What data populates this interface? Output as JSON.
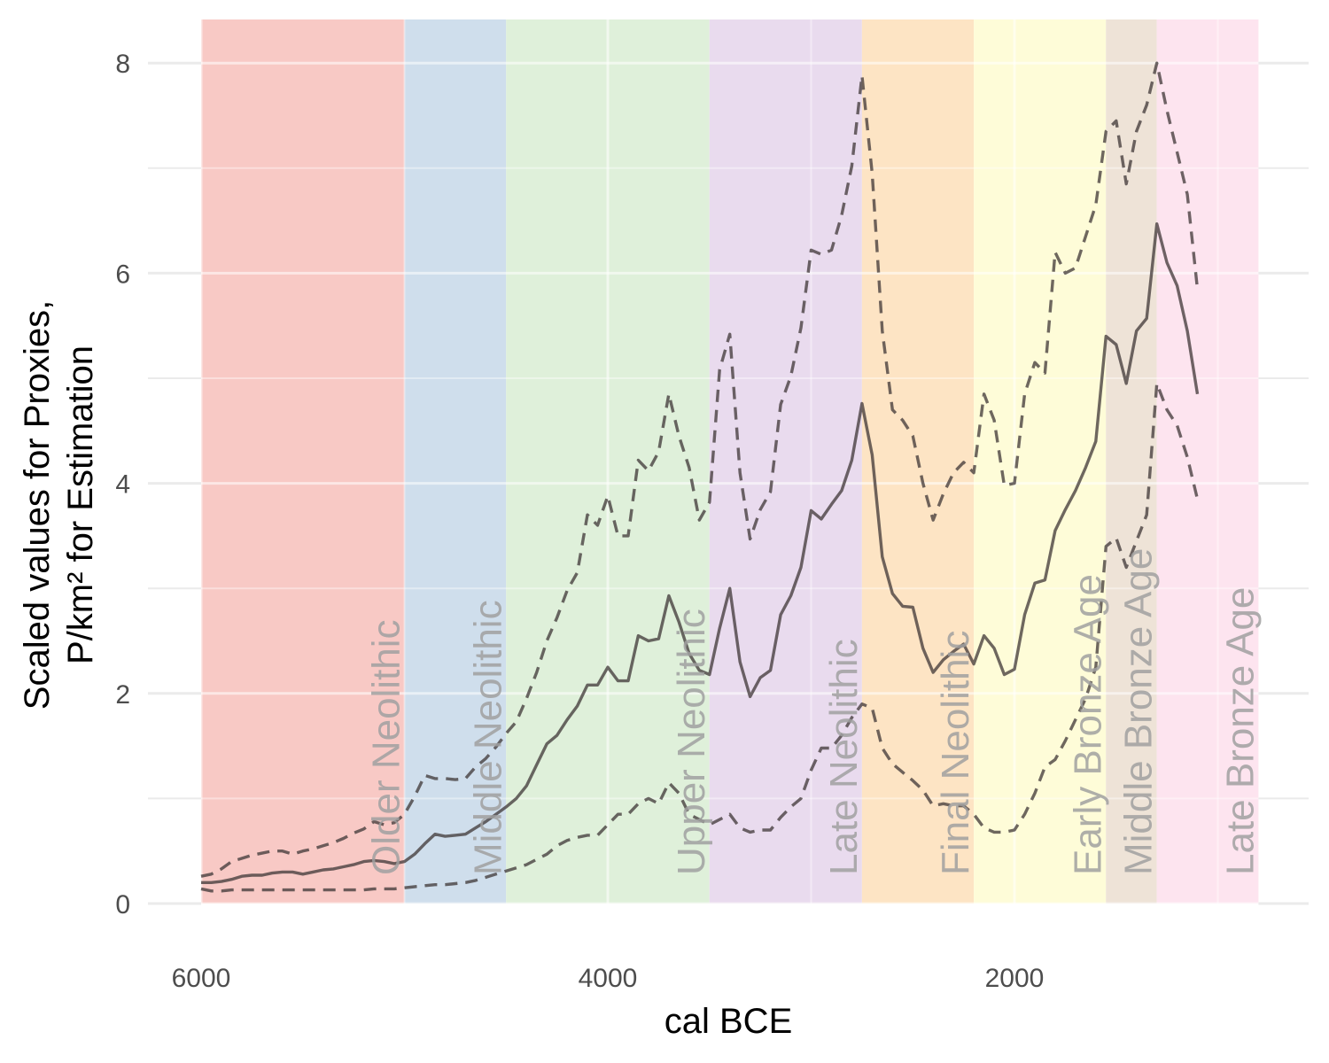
{
  "chart_data": {
    "type": "line",
    "xlabel": "cal BCE",
    "ylabel": [
      "Scaled values for Proxies,",
      "P/km² for Estimation"
    ],
    "x_reversed": true,
    "xlim": [
      6000,
      500
    ],
    "ylim": [
      0,
      8
    ],
    "x_ticks": [
      6000,
      4000,
      2000
    ],
    "x_tick_labels": [
      "6000",
      "4000",
      "2000"
    ],
    "x_minor_ticks": [
      5000,
      3000,
      1000
    ],
    "y_ticks": [
      0,
      2,
      4,
      6,
      8
    ],
    "y_tick_labels": [
      "0",
      "2",
      "4",
      "6",
      "8"
    ],
    "y_minor_ticks": [
      1,
      3,
      5,
      7
    ],
    "grid": true,
    "periods": [
      {
        "label": "Older Neolithic",
        "start": 6000,
        "end": 5000,
        "color": "#f8c9c5"
      },
      {
        "label": "Middle Neolithic",
        "start": 5000,
        "end": 4500,
        "color": "#cfdeec"
      },
      {
        "label": "Upper Neolithic",
        "start": 4500,
        "end": 3500,
        "color": "#dff0da"
      },
      {
        "label": "Late Neolithic",
        "start": 3500,
        "end": 2750,
        "color": "#e9dbee"
      },
      {
        "label": "Final Neolithic",
        "start": 2750,
        "end": 2200,
        "color": "#fde4c4"
      },
      {
        "label": "Early Bronze Age",
        "start": 2200,
        "end": 1550,
        "color": "#fefcd8"
      },
      {
        "label": "Middle Bronze Age",
        "start": 1550,
        "end": 1300,
        "color": "#eee3d7"
      },
      {
        "label": "Late Bronze Age",
        "start": 1300,
        "end": 800,
        "color": "#fde4ef"
      }
    ],
    "series": [
      {
        "style": "solid",
        "points": [
          [
            6000,
            0.2
          ],
          [
            5950,
            0.2
          ],
          [
            5900,
            0.21
          ],
          [
            5850,
            0.23
          ],
          [
            5800,
            0.26
          ],
          [
            5750,
            0.27
          ],
          [
            5700,
            0.27
          ],
          [
            5650,
            0.29
          ],
          [
            5600,
            0.3
          ],
          [
            5550,
            0.3
          ],
          [
            5500,
            0.28
          ],
          [
            5450,
            0.3
          ],
          [
            5400,
            0.32
          ],
          [
            5350,
            0.33
          ],
          [
            5300,
            0.35
          ],
          [
            5250,
            0.37
          ],
          [
            5200,
            0.4
          ],
          [
            5150,
            0.41
          ],
          [
            5100,
            0.4
          ],
          [
            5050,
            0.38
          ],
          [
            5000,
            0.4
          ],
          [
            4950,
            0.47
          ],
          [
            4900,
            0.57
          ],
          [
            4850,
            0.66
          ],
          [
            4800,
            0.64
          ],
          [
            4750,
            0.65
          ],
          [
            4700,
            0.66
          ],
          [
            4650,
            0.72
          ],
          [
            4600,
            0.78
          ],
          [
            4550,
            0.85
          ],
          [
            4500,
            0.92
          ],
          [
            4450,
            1.0
          ],
          [
            4400,
            1.12
          ],
          [
            4350,
            1.32
          ],
          [
            4300,
            1.52
          ],
          [
            4250,
            1.6
          ],
          [
            4200,
            1.75
          ],
          [
            4150,
            1.88
          ],
          [
            4100,
            2.08
          ],
          [
            4050,
            2.08
          ],
          [
            4000,
            2.25
          ],
          [
            3950,
            2.12
          ],
          [
            3900,
            2.12
          ],
          [
            3850,
            2.55
          ],
          [
            3800,
            2.5
          ],
          [
            3750,
            2.52
          ],
          [
            3700,
            2.93
          ],
          [
            3650,
            2.68
          ],
          [
            3600,
            2.38
          ],
          [
            3550,
            2.22
          ],
          [
            3500,
            2.18
          ],
          [
            3450,
            2.62
          ],
          [
            3400,
            3.0
          ],
          [
            3350,
            2.3
          ],
          [
            3300,
            1.97
          ],
          [
            3250,
            2.15
          ],
          [
            3200,
            2.22
          ],
          [
            3150,
            2.75
          ],
          [
            3100,
            2.93
          ],
          [
            3050,
            3.2
          ],
          [
            3000,
            3.74
          ],
          [
            2950,
            3.66
          ],
          [
            2900,
            3.8
          ],
          [
            2850,
            3.93
          ],
          [
            2800,
            4.22
          ],
          [
            2750,
            4.76
          ],
          [
            2700,
            4.27
          ],
          [
            2650,
            3.3
          ],
          [
            2600,
            2.95
          ],
          [
            2550,
            2.83
          ],
          [
            2500,
            2.82
          ],
          [
            2450,
            2.43
          ],
          [
            2400,
            2.2
          ],
          [
            2350,
            2.32
          ],
          [
            2300,
            2.4
          ],
          [
            2250,
            2.47
          ],
          [
            2200,
            2.28
          ],
          [
            2150,
            2.55
          ],
          [
            2100,
            2.43
          ],
          [
            2050,
            2.18
          ],
          [
            2000,
            2.23
          ],
          [
            1950,
            2.75
          ],
          [
            1900,
            3.05
          ],
          [
            1850,
            3.08
          ],
          [
            1800,
            3.55
          ],
          [
            1750,
            3.75
          ],
          [
            1700,
            3.93
          ],
          [
            1650,
            4.15
          ],
          [
            1600,
            4.4
          ],
          [
            1550,
            5.4
          ],
          [
            1500,
            5.32
          ],
          [
            1450,
            4.95
          ],
          [
            1400,
            5.45
          ],
          [
            1350,
            5.57
          ],
          [
            1300,
            6.47
          ],
          [
            1250,
            6.1
          ],
          [
            1200,
            5.88
          ],
          [
            1150,
            5.45
          ],
          [
            1100,
            4.85
          ]
        ]
      },
      {
        "style": "dashed",
        "points": [
          [
            6000,
            0.26
          ],
          [
            5950,
            0.28
          ],
          [
            5900,
            0.33
          ],
          [
            5850,
            0.4
          ],
          [
            5800,
            0.43
          ],
          [
            5750,
            0.46
          ],
          [
            5700,
            0.48
          ],
          [
            5650,
            0.5
          ],
          [
            5600,
            0.5
          ],
          [
            5550,
            0.47
          ],
          [
            5500,
            0.5
          ],
          [
            5450,
            0.52
          ],
          [
            5400,
            0.55
          ],
          [
            5350,
            0.58
          ],
          [
            5300,
            0.62
          ],
          [
            5250,
            0.67
          ],
          [
            5200,
            0.71
          ],
          [
            5150,
            0.78
          ],
          [
            5100,
            0.75
          ],
          [
            5050,
            0.77
          ],
          [
            5000,
            0.85
          ],
          [
            4950,
            1.02
          ],
          [
            4900,
            1.22
          ],
          [
            4850,
            1.19
          ],
          [
            4800,
            1.19
          ],
          [
            4750,
            1.18
          ],
          [
            4700,
            1.19
          ],
          [
            4650,
            1.3
          ],
          [
            4600,
            1.38
          ],
          [
            4550,
            1.49
          ],
          [
            4500,
            1.62
          ],
          [
            4450,
            1.73
          ],
          [
            4400,
            1.95
          ],
          [
            4350,
            2.2
          ],
          [
            4300,
            2.5
          ],
          [
            4250,
            2.72
          ],
          [
            4200,
            2.98
          ],
          [
            4150,
            3.15
          ],
          [
            4100,
            3.7
          ],
          [
            4050,
            3.6
          ],
          [
            4000,
            3.88
          ],
          [
            3950,
            3.5
          ],
          [
            3900,
            3.5
          ],
          [
            3850,
            4.22
          ],
          [
            3800,
            4.12
          ],
          [
            3750,
            4.3
          ],
          [
            3700,
            4.85
          ],
          [
            3650,
            4.45
          ],
          [
            3600,
            4.15
          ],
          [
            3550,
            3.65
          ],
          [
            3500,
            3.82
          ],
          [
            3450,
            5.08
          ],
          [
            3400,
            5.42
          ],
          [
            3350,
            4.1
          ],
          [
            3300,
            3.47
          ],
          [
            3250,
            3.75
          ],
          [
            3200,
            3.92
          ],
          [
            3150,
            4.75
          ],
          [
            3100,
            5.02
          ],
          [
            3050,
            5.48
          ],
          [
            3000,
            6.22
          ],
          [
            2950,
            6.18
          ],
          [
            2900,
            6.22
          ],
          [
            2850,
            6.55
          ],
          [
            2800,
            7.02
          ],
          [
            2750,
            7.88
          ],
          [
            2700,
            6.95
          ],
          [
            2650,
            5.45
          ],
          [
            2600,
            4.7
          ],
          [
            2550,
            4.6
          ],
          [
            2500,
            4.45
          ],
          [
            2450,
            4.0
          ],
          [
            2400,
            3.65
          ],
          [
            2350,
            3.9
          ],
          [
            2300,
            4.1
          ],
          [
            2250,
            4.2
          ],
          [
            2200,
            4.1
          ],
          [
            2150,
            4.85
          ],
          [
            2100,
            4.6
          ],
          [
            2050,
            3.98
          ],
          [
            2000,
            4.0
          ],
          [
            1950,
            4.85
          ],
          [
            1900,
            5.15
          ],
          [
            1850,
            5.05
          ],
          [
            1800,
            6.2
          ],
          [
            1750,
            6.0
          ],
          [
            1700,
            6.05
          ],
          [
            1650,
            6.35
          ],
          [
            1600,
            6.65
          ],
          [
            1550,
            7.35
          ],
          [
            1500,
            7.45
          ],
          [
            1450,
            6.85
          ],
          [
            1400,
            7.35
          ],
          [
            1350,
            7.6
          ],
          [
            1300,
            8.0
          ],
          [
            1250,
            7.55
          ],
          [
            1200,
            7.15
          ],
          [
            1150,
            6.75
          ],
          [
            1100,
            5.85
          ]
        ]
      },
      {
        "style": "dashed",
        "points": [
          [
            6000,
            0.14
          ],
          [
            5950,
            0.12
          ],
          [
            5900,
            0.12
          ],
          [
            5850,
            0.13
          ],
          [
            5800,
            0.13
          ],
          [
            5750,
            0.13
          ],
          [
            5700,
            0.13
          ],
          [
            5650,
            0.13
          ],
          [
            5600,
            0.13
          ],
          [
            5550,
            0.13
          ],
          [
            5500,
            0.13
          ],
          [
            5450,
            0.13
          ],
          [
            5400,
            0.13
          ],
          [
            5350,
            0.13
          ],
          [
            5300,
            0.13
          ],
          [
            5250,
            0.13
          ],
          [
            5200,
            0.13
          ],
          [
            5150,
            0.14
          ],
          [
            5100,
            0.14
          ],
          [
            5050,
            0.14
          ],
          [
            5000,
            0.15
          ],
          [
            4950,
            0.16
          ],
          [
            4900,
            0.17
          ],
          [
            4850,
            0.18
          ],
          [
            4800,
            0.18
          ],
          [
            4750,
            0.19
          ],
          [
            4700,
            0.2
          ],
          [
            4650,
            0.22
          ],
          [
            4600,
            0.25
          ],
          [
            4550,
            0.28
          ],
          [
            4500,
            0.31
          ],
          [
            4450,
            0.34
          ],
          [
            4400,
            0.37
          ],
          [
            4350,
            0.42
          ],
          [
            4300,
            0.47
          ],
          [
            4250,
            0.55
          ],
          [
            4200,
            0.6
          ],
          [
            4150,
            0.63
          ],
          [
            4100,
            0.65
          ],
          [
            4050,
            0.65
          ],
          [
            4000,
            0.75
          ],
          [
            3950,
            0.85
          ],
          [
            3900,
            0.85
          ],
          [
            3850,
            0.95
          ],
          [
            3800,
            1.0
          ],
          [
            3750,
            0.95
          ],
          [
            3700,
            1.15
          ],
          [
            3650,
            1.05
          ],
          [
            3600,
            0.85
          ],
          [
            3550,
            0.8
          ],
          [
            3500,
            0.75
          ],
          [
            3450,
            0.8
          ],
          [
            3400,
            0.85
          ],
          [
            3350,
            0.72
          ],
          [
            3300,
            0.68
          ],
          [
            3250,
            0.7
          ],
          [
            3200,
            0.7
          ],
          [
            3150,
            0.82
          ],
          [
            3100,
            0.92
          ],
          [
            3050,
            1.0
          ],
          [
            3000,
            1.27
          ],
          [
            2950,
            1.48
          ],
          [
            2900,
            1.48
          ],
          [
            2850,
            1.6
          ],
          [
            2800,
            1.77
          ],
          [
            2750,
            1.9
          ],
          [
            2700,
            1.86
          ],
          [
            2650,
            1.48
          ],
          [
            2600,
            1.33
          ],
          [
            2550,
            1.25
          ],
          [
            2500,
            1.17
          ],
          [
            2450,
            1.08
          ],
          [
            2400,
            0.93
          ],
          [
            2350,
            0.95
          ],
          [
            2300,
            0.93
          ],
          [
            2250,
            0.93
          ],
          [
            2200,
            0.85
          ],
          [
            2150,
            0.72
          ],
          [
            2100,
            0.68
          ],
          [
            2050,
            0.68
          ],
          [
            2000,
            0.7
          ],
          [
            1950,
            0.85
          ],
          [
            1900,
            1.05
          ],
          [
            1850,
            1.3
          ],
          [
            1800,
            1.37
          ],
          [
            1750,
            1.55
          ],
          [
            1700,
            1.75
          ],
          [
            1650,
            1.95
          ],
          [
            1600,
            2.25
          ],
          [
            1550,
            3.4
          ],
          [
            1500,
            3.48
          ],
          [
            1450,
            3.2
          ],
          [
            1400,
            3.45
          ],
          [
            1350,
            3.7
          ],
          [
            1300,
            4.95
          ],
          [
            1250,
            4.7
          ],
          [
            1200,
            4.55
          ],
          [
            1150,
            4.25
          ],
          [
            1100,
            3.85
          ]
        ]
      }
    ]
  },
  "colors": {
    "line": "#3d3535",
    "grid": "#ebebeb",
    "tick_label": "#4d4d4d",
    "period_label": "#a0a0a0"
  }
}
